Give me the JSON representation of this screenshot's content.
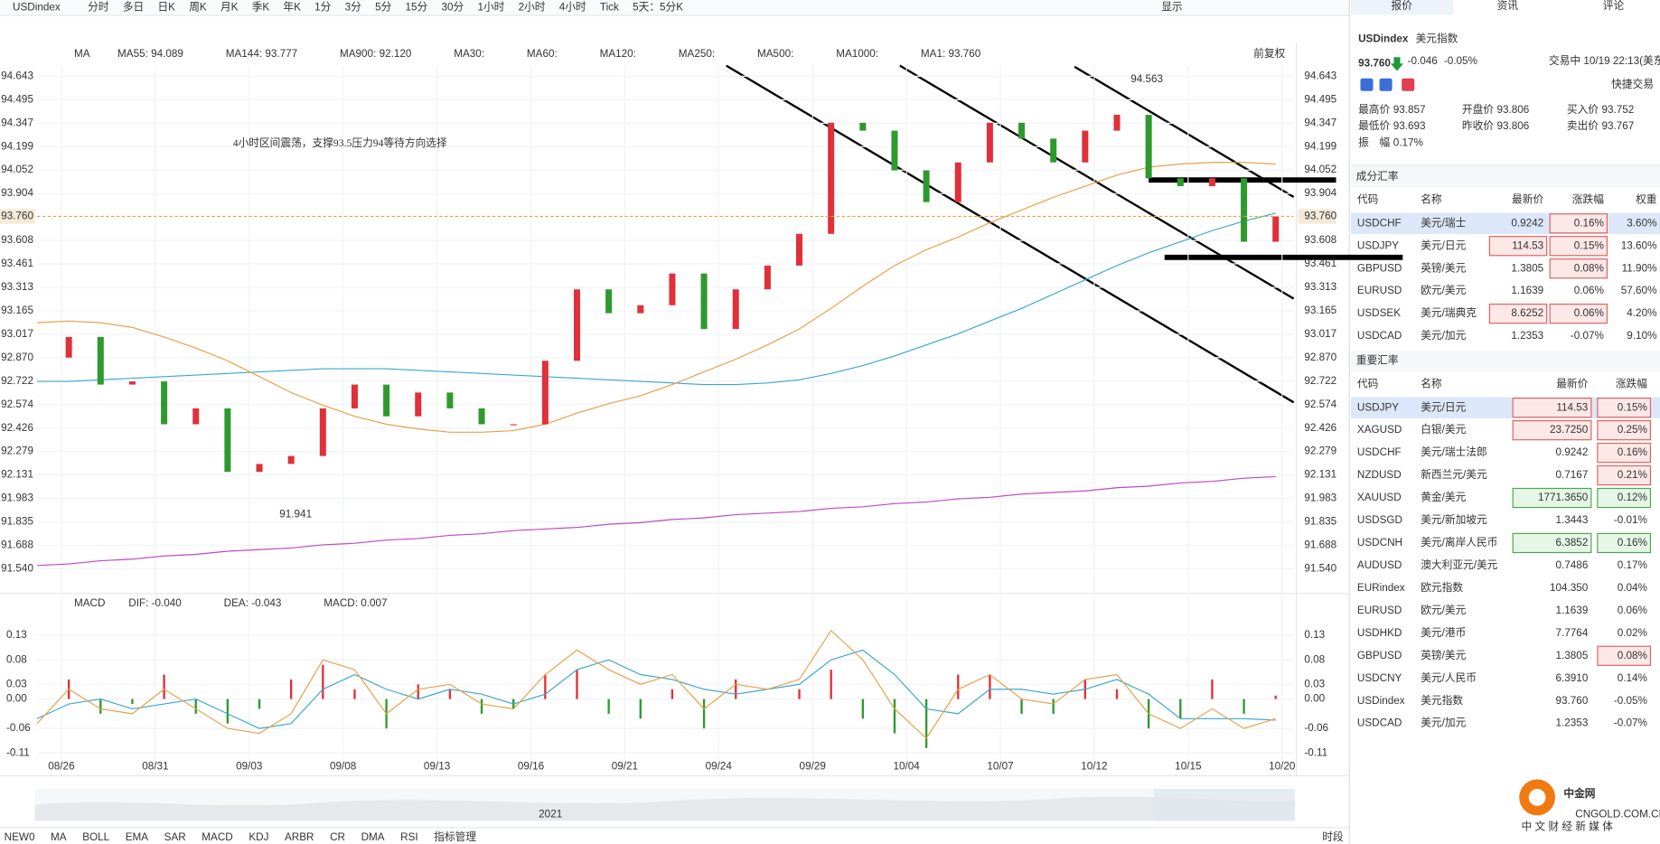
{
  "toolbar": {
    "symbol": "USDindex",
    "periods": [
      "分时",
      "多日",
      "日K",
      "周K",
      "月K",
      "季K",
      "年K",
      "1分",
      "3分",
      "5分",
      "15分",
      "30分",
      "1小时",
      "2小时",
      "4小时",
      "Tick",
      "5天：5分K"
    ],
    "active_index": 14,
    "display": "显示"
  },
  "chart": {
    "legend": [
      {
        "text": "MA",
        "color": "#333333"
      },
      {
        "text": "MA55: 94.089",
        "color": "#e8a048"
      },
      {
        "text": "MA144: 93.777",
        "color": "#3aa6d0"
      },
      {
        "text": "MA900: 92.120",
        "color": "#c048c8"
      },
      {
        "text": "MA30:",
        "color": "#b8dcef"
      },
      {
        "text": "MA60:",
        "color": "#f2c9b8"
      },
      {
        "text": "MA120:",
        "color": "#f4c0c8"
      },
      {
        "text": "MA250:",
        "color": "#c8d8f4"
      },
      {
        "text": "MA500:",
        "color": "#f4d8a8"
      },
      {
        "text": "MA1000:",
        "color": "#d8c8f0"
      },
      {
        "text": "MA1: 93.760",
        "color": "#555555"
      }
    ],
    "restore": "前复权",
    "annotation": "4小时区间震荡，支撑93.5压力94等待方向选择",
    "high": 94.563,
    "low": 91.941,
    "ylim": [
      91.54,
      94.643
    ],
    "yticks": [
      94.643,
      94.495,
      94.347,
      94.199,
      94.052,
      93.904,
      93.608,
      93.461,
      93.313,
      93.165,
      93.017,
      {
        "value": 92.87,
        "label": "92.870"
      },
      92.722,
      92.574,
      92.426,
      92.279,
      92.131,
      91.983,
      91.835,
      91.688,
      {
        "value": 91.54,
        "label": "91.540"
      }
    ],
    "last": {
      "value": 93.76,
      "label": "93.760"
    },
    "dates": [
      "08/26",
      "08/31",
      "09/03",
      "09/08",
      "09/13",
      "09/16",
      "09/21",
      "09/24",
      "09/29",
      "10/04",
      "10/07",
      "10/12",
      "10/15",
      "10/20"
    ],
    "close": [
      92.87,
      93.0,
      92.7,
      92.72,
      92.45,
      92.55,
      92.15,
      92.2,
      92.25,
      92.55,
      92.7,
      92.5,
      92.65,
      92.55,
      92.45,
      92.45,
      92.85,
      93.3,
      93.15,
      93.2,
      93.4,
      93.05,
      93.3,
      93.45,
      93.65,
      94.35,
      94.3,
      94.05,
      93.85,
      94.1,
      94.35,
      94.25,
      94.1,
      94.3,
      94.4,
      94.0,
      93.95,
      94.0,
      93.6,
      93.76
    ],
    "ma55": [
      93.09,
      93.1,
      93.09,
      93.06,
      93.0,
      92.93,
      92.85,
      92.75,
      92.65,
      92.57,
      92.5,
      92.45,
      92.42,
      92.4,
      92.4,
      92.41,
      92.45,
      92.52,
      92.58,
      92.63,
      92.7,
      92.78,
      92.86,
      92.95,
      93.05,
      93.18,
      93.32,
      93.45,
      93.55,
      93.63,
      93.72,
      93.8,
      93.88,
      93.95,
      94.02,
      94.07,
      94.09,
      94.1,
      94.1,
      94.09
    ],
    "ma144": [
      92.72,
      92.72,
      92.73,
      92.74,
      92.75,
      92.76,
      92.77,
      92.78,
      92.79,
      92.8,
      92.8,
      92.8,
      92.79,
      92.78,
      92.77,
      92.76,
      92.75,
      92.74,
      92.73,
      92.72,
      92.71,
      92.7,
      92.7,
      92.71,
      92.73,
      92.77,
      92.82,
      92.88,
      92.95,
      93.02,
      93.1,
      93.18,
      93.27,
      93.36,
      93.45,
      93.53,
      93.6,
      93.67,
      93.73,
      93.78
    ],
    "ma900": [
      91.56,
      91.57,
      91.59,
      91.6,
      91.62,
      91.63,
      91.65,
      91.66,
      91.67,
      91.69,
      91.7,
      91.72,
      91.73,
      91.75,
      91.76,
      91.78,
      91.79,
      91.8,
      91.82,
      91.83,
      91.85,
      91.86,
      91.88,
      91.89,
      91.9,
      91.92,
      91.93,
      91.95,
      91.96,
      91.98,
      91.99,
      92.01,
      92.02,
      92.03,
      92.05,
      92.06,
      92.08,
      92.09,
      92.11,
      92.12
    ],
    "colors": {
      "up": "#e0303a",
      "down": "#2e9a2e",
      "ma55": "#e8a048",
      "ma144": "#3aa6d0",
      "ma900": "#c048c8",
      "last": "#e8a048"
    }
  },
  "macd": {
    "legend": [
      {
        "text": "MACD",
        "color": "#333333"
      },
      {
        "text": "DIF: -0.040",
        "color": "#e8a048"
      },
      {
        "text": "DEA: -0.043",
        "color": "#3aa6d0"
      },
      {
        "text": "MACD: 0.007",
        "color": "#c048c8"
      }
    ],
    "ylim": [
      -0.11,
      0.13
    ],
    "yticks": [
      0.13,
      0.08,
      0.03,
      {
        "value": 0,
        "label": "0.00"
      },
      -0.06,
      -0.11
    ],
    "hist": [
      0.0,
      0.04,
      -0.03,
      -0.01,
      0.05,
      -0.03,
      -0.05,
      -0.02,
      0.04,
      0.07,
      0.02,
      -0.06,
      0.03,
      0.02,
      -0.03,
      -0.02,
      0.05,
      0.06,
      -0.03,
      -0.04,
      0.02,
      -0.06,
      0.04,
      0.0,
      0.02,
      0.06,
      -0.04,
      -0.07,
      -0.1,
      0.05,
      0.05,
      -0.03,
      -0.03,
      0.04,
      0.02,
      -0.06,
      -0.04,
      0.04,
      -0.03,
      0.007
    ],
    "dif": [
      -0.05,
      0.02,
      -0.02,
      -0.03,
      0.02,
      -0.02,
      -0.06,
      -0.07,
      -0.03,
      0.08,
      0.06,
      -0.03,
      0.02,
      0.03,
      -0.01,
      -0.02,
      0.05,
      0.1,
      0.06,
      0.03,
      0.05,
      -0.02,
      0.03,
      0.02,
      0.04,
      0.14,
      0.08,
      -0.02,
      -0.08,
      0.02,
      0.05,
      0.0,
      -0.01,
      0.04,
      0.05,
      -0.03,
      -0.06,
      -0.02,
      -0.06,
      -0.04
    ],
    "dea": [
      -0.04,
      -0.01,
      0.0,
      -0.02,
      -0.01,
      0.0,
      -0.03,
      -0.06,
      -0.05,
      0.02,
      0.05,
      0.02,
      0.0,
      0.02,
      0.01,
      -0.01,
      0.01,
      0.06,
      0.08,
      0.05,
      0.04,
      0.02,
      0.01,
      0.02,
      0.03,
      0.08,
      0.1,
      0.05,
      -0.02,
      -0.03,
      0.02,
      0.02,
      0.01,
      0.02,
      0.04,
      0.01,
      -0.04,
      -0.04,
      -0.04,
      -0.043
    ]
  },
  "navigator": {
    "year": "2021"
  },
  "indicators": {
    "items": [
      "NEW0",
      "MA",
      "BOLL",
      "EMA",
      "SAR",
      "MACD",
      "KDJ",
      "ARBR",
      "CR",
      "DMA",
      "RSI"
    ],
    "active": [
      1,
      5
    ],
    "manage": "指标管理",
    "session": "时段"
  },
  "sidebar": {
    "tabs": [
      "报价",
      "资讯",
      "评论"
    ],
    "active_tab": 0,
    "code": "USDindex",
    "name": "美元指数",
    "price": "93.760",
    "change": "-0.046",
    "percent": "-0.05%",
    "status": "交易中 10/19 22:13(美东)",
    "quick": "快捷交易",
    "stats": [
      {
        "label": "最高价",
        "value": "93.857",
        "color": "#e0303a"
      },
      {
        "label": "开盘价",
        "value": "93.806",
        "color": "#333333"
      },
      {
        "label": "买入价",
        "value": "93.752",
        "color": "#e0303a"
      },
      {
        "label": "最低价",
        "value": "93.693",
        "color": "#2e9a2e"
      },
      {
        "label": "昨收价",
        "value": "93.806",
        "color": "#333333"
      },
      {
        "label": "卖出价",
        "value": "93.767",
        "color": "#e0303a"
      },
      {
        "label": "振　幅",
        "value": "0.17%",
        "color": "#333333"
      }
    ],
    "box_colors": {
      "red": {
        "fill": "#fde8e8",
        "stroke": "#e06060"
      },
      "green": {
        "fill": "#e6f6e6",
        "stroke": "#4aa84a"
      }
    },
    "components": {
      "title": "成分汇率",
      "header": [
        "代码",
        "名称",
        "最新价",
        "涨跌幅",
        "权重"
      ],
      "selected": 0,
      "rows": [
        {
          "cells": [
            "USDCHF",
            "美元/瑞士",
            "0.9242",
            "0.16%",
            "3.60%"
          ],
          "hl": [
            3
          ],
          "hl_color": "red"
        },
        {
          "cells": [
            "USDJPY",
            "美元/日元",
            "114.53",
            "0.15%",
            "13.60%"
          ],
          "hl": [
            2,
            3
          ],
          "hl_color": "red"
        },
        {
          "cells": [
            "GBPUSD",
            "英镑/美元",
            "1.3805",
            "0.08%",
            "11.90%"
          ],
          "hl": [
            3
          ],
          "hl_color": "red"
        },
        {
          "cells": [
            "EURUSD",
            "欧元/美元",
            "1.1639",
            "0.06%",
            "57.60%"
          ],
          "hl": [],
          "hl_color": "red"
        },
        {
          "cells": [
            "USDSEK",
            "美元/瑞典克",
            "8.6252",
            "0.06%",
            "4.20%"
          ],
          "hl": [
            2,
            3
          ],
          "hl_color": "red"
        },
        {
          "cells": [
            "USDCAD",
            "美元/加元",
            "1.2353",
            "-0.07%",
            "9.10%"
          ],
          "hl": [],
          "hl_color": "red"
        }
      ]
    },
    "majors": {
      "title": "重要汇率",
      "header": [
        "代码",
        "名称",
        "最新价",
        "涨跌幅"
      ],
      "selected": 0,
      "rows": [
        {
          "cells": [
            "USDJPY",
            "美元/日元",
            "114.53",
            "0.15%"
          ],
          "hl": [
            2,
            3
          ],
          "hl_color": "red"
        },
        {
          "cells": [
            "XAGUSD",
            "白银/美元",
            "23.7250",
            "0.25%"
          ],
          "hl": [
            2,
            3
          ],
          "hl_color": "red"
        },
        {
          "cells": [
            "USDCHF",
            "美元/瑞士法郎",
            "0.9242",
            "0.16%"
          ],
          "hl": [
            3
          ],
          "hl_color": "red"
        },
        {
          "cells": [
            "NZDUSD",
            "新西兰元/美元",
            "0.7167",
            "0.21%"
          ],
          "hl": [
            3
          ],
          "hl_color": "red"
        },
        {
          "cells": [
            "XAUUSD",
            "黄金/美元",
            "1771.3650",
            "0.12%"
          ],
          "hl": [
            2,
            3
          ],
          "hl_color": "green"
        },
        {
          "cells": [
            "USDSGD",
            "美元/新加坡元",
            "1.3443",
            "-0.01%"
          ],
          "hl": [],
          "hl_color": "red"
        },
        {
          "cells": [
            "USDCNH",
            "美元/离岸人民币",
            "6.3852",
            "0.16%"
          ],
          "hl": [
            2,
            3
          ],
          "hl_color": "green"
        },
        {
          "cells": [
            "AUDUSD",
            "澳大利亚元/美元",
            "0.7486",
            "0.17%"
          ],
          "hl": [],
          "hl_color": "red"
        },
        {
          "cells": [
            "EURindex",
            "欧元指数",
            "104.350",
            "0.04%"
          ],
          "hl": [],
          "hl_color": "red"
        },
        {
          "cells": [
            "EURUSD",
            "欧元/美元",
            "1.1639",
            "0.06%"
          ],
          "hl": [],
          "hl_color": "red"
        },
        {
          "cells": [
            "USDHKD",
            "美元/港币",
            "7.7764",
            "0.02%"
          ],
          "hl": [],
          "hl_color": "red"
        },
        {
          "cells": [
            "GBPUSD",
            "英镑/美元",
            "1.3805",
            "0.08%"
          ],
          "hl": [
            3
          ],
          "hl_color": "red"
        },
        {
          "cells": [
            "USDCNY",
            "美元/人民币",
            "6.3910",
            "0.14%"
          ],
          "hl": [],
          "hl_color": "red"
        },
        {
          "cells": [
            "USDindex",
            "美元指数",
            "93.760",
            "-0.05%"
          ],
          "hl": [],
          "hl_color": "red"
        },
        {
          "cells": [
            "USDCAD",
            "美元/加元",
            "1.2353",
            "-0.07%"
          ],
          "hl": [],
          "hl_color": "red"
        }
      ]
    }
  },
  "logo": {
    "name": "中金网",
    "site": "CNGOLD.COM.CN",
    "slogan": "中 文 财 经 新 媒 体"
  }
}
